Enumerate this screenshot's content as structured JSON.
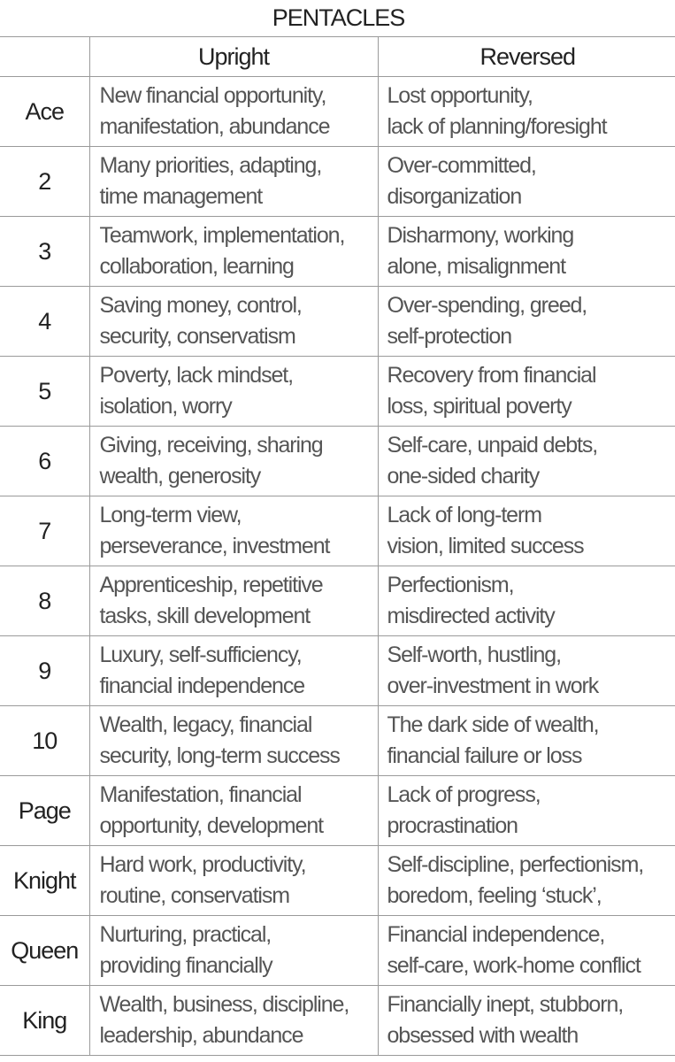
{
  "title": "PENTACLES",
  "headers": {
    "upright": "Upright",
    "reversed": "Reversed"
  },
  "rows": [
    {
      "rank": "Ace",
      "upright": [
        "New financial opportunity,",
        "manifestation, abundance"
      ],
      "reversed": [
        "Lost opportunity,",
        "lack of planning/foresight"
      ]
    },
    {
      "rank": "2",
      "upright": [
        "Many priorities, adapting,",
        "time management"
      ],
      "reversed": [
        "Over-committed,",
        "disorganization"
      ]
    },
    {
      "rank": "3",
      "upright": [
        "Teamwork, implementation,",
        "collaboration, learning"
      ],
      "reversed": [
        "Disharmony, working",
        "alone, misalignment"
      ]
    },
    {
      "rank": "4",
      "upright": [
        "Saving money,  control,",
        "security, conservatism"
      ],
      "reversed": [
        "Over-spending, greed,",
        "self-protection"
      ]
    },
    {
      "rank": "5",
      "upright": [
        "Poverty, lack mindset,",
        "isolation, worry"
      ],
      "reversed": [
        "Recovery from financial",
        "loss, spiritual poverty"
      ]
    },
    {
      "rank": "6",
      "upright": [
        "Giving, receiving, sharing",
        "wealth, generosity"
      ],
      "reversed": [
        "Self-care, unpaid debts,",
        "one-sided charity"
      ]
    },
    {
      "rank": "7",
      "upright": [
        "Long-term view,",
        "perseverance, investment"
      ],
      "reversed": [
        "Lack of long-term",
        "vision, limited success"
      ]
    },
    {
      "rank": "8",
      "upright": [
        "Apprenticeship, repetitive",
        "tasks, skill development"
      ],
      "reversed": [
        "Perfectionism,",
        "misdirected activity"
      ]
    },
    {
      "rank": "9",
      "upright": [
        "Luxury, self-sufficiency,",
        "financial independence"
      ],
      "reversed": [
        "Self-worth, hustling,",
        "over-investment in work"
      ]
    },
    {
      "rank": "10",
      "upright": [
        "Wealth, legacy, financial",
        "security, long-term success"
      ],
      "reversed": [
        "The dark side of wealth,",
        "financial failure or loss"
      ]
    },
    {
      "rank": "Page",
      "upright": [
        "Manifestation, financial",
        "opportunity,  development"
      ],
      "reversed": [
        "Lack of progress,",
        "procrastination"
      ]
    },
    {
      "rank": "Knight",
      "upright": [
        "Hard work, productivity,",
        "routine, conservatism"
      ],
      "reversed": [
        "Self-discipline, perfectionism,",
        "boredom, feeling ‘stuck’,"
      ]
    },
    {
      "rank": "Queen",
      "upright": [
        "Nurturing, practical,",
        "providing financially"
      ],
      "reversed": [
        "Financial independence,",
        "self-care, work-home conflict"
      ]
    },
    {
      "rank": "King",
      "upright": [
        "Wealth, business, discipline,",
        "leadership, abundance"
      ],
      "reversed": [
        "Financially inept, stubborn,",
        "obsessed with wealth"
      ]
    }
  ]
}
